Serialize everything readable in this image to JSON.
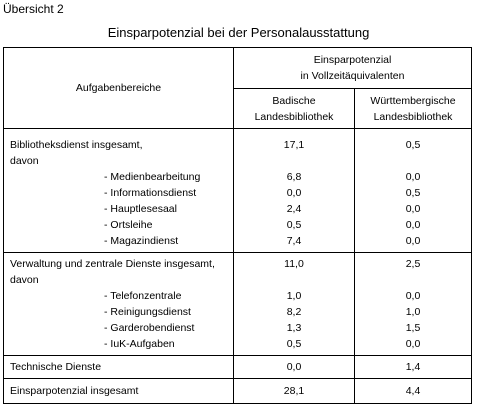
{
  "overview_label": "Übersicht 2",
  "title": "Einsparpotenzial bei der Personalausstattung",
  "header": {
    "col1": "Aufgabenbereiche",
    "group_line1": "Einsparpotenzial",
    "group_line2": "in Vollzeitäquivalenten",
    "col2_line1": "Badische",
    "col2_line2": "Landesbibliothek",
    "col3_line1": "Württembergische",
    "col3_line2": "Landesbibliothek"
  },
  "groups": [
    {
      "title": "Bibliotheksdienst insgesamt,",
      "subtitle": "davon",
      "total_bad": "17,1",
      "total_wue": "0,5",
      "items": [
        {
          "label": "- Medienbearbeitung",
          "bad": "6,8",
          "wue": "0,0"
        },
        {
          "label": "- Informationsdienst",
          "bad": "0,0",
          "wue": "0,5"
        },
        {
          "label": "- Hauptlesesaal",
          "bad": "2,4",
          "wue": "0,0"
        },
        {
          "label": "- Ortsleihe",
          "bad": "0,5",
          "wue": "0,0"
        },
        {
          "label": "- Magazindienst",
          "bad": "7,4",
          "wue": "0,0"
        }
      ]
    },
    {
      "title": "Verwaltung und zentrale Dienste insgesamt,",
      "subtitle": "davon",
      "total_bad": "11,0",
      "total_wue": "2,5",
      "items": [
        {
          "label": "- Telefonzentrale",
          "bad": "1,0",
          "wue": "0,0"
        },
        {
          "label": "- Reinigungsdienst",
          "bad": "8,2",
          "wue": "1,0"
        },
        {
          "label": "- Garderobendienst",
          "bad": "1,3",
          "wue": "1,5"
        },
        {
          "label": "- IuK-Aufgaben",
          "bad": "0,5",
          "wue": "0,0"
        }
      ]
    }
  ],
  "technical": {
    "label": "Technische Dienste",
    "bad": "0,0",
    "wue": "1,4"
  },
  "total": {
    "label": "Einsparpotenzial insgesamt",
    "bad": "28,1",
    "wue": "4,4"
  }
}
